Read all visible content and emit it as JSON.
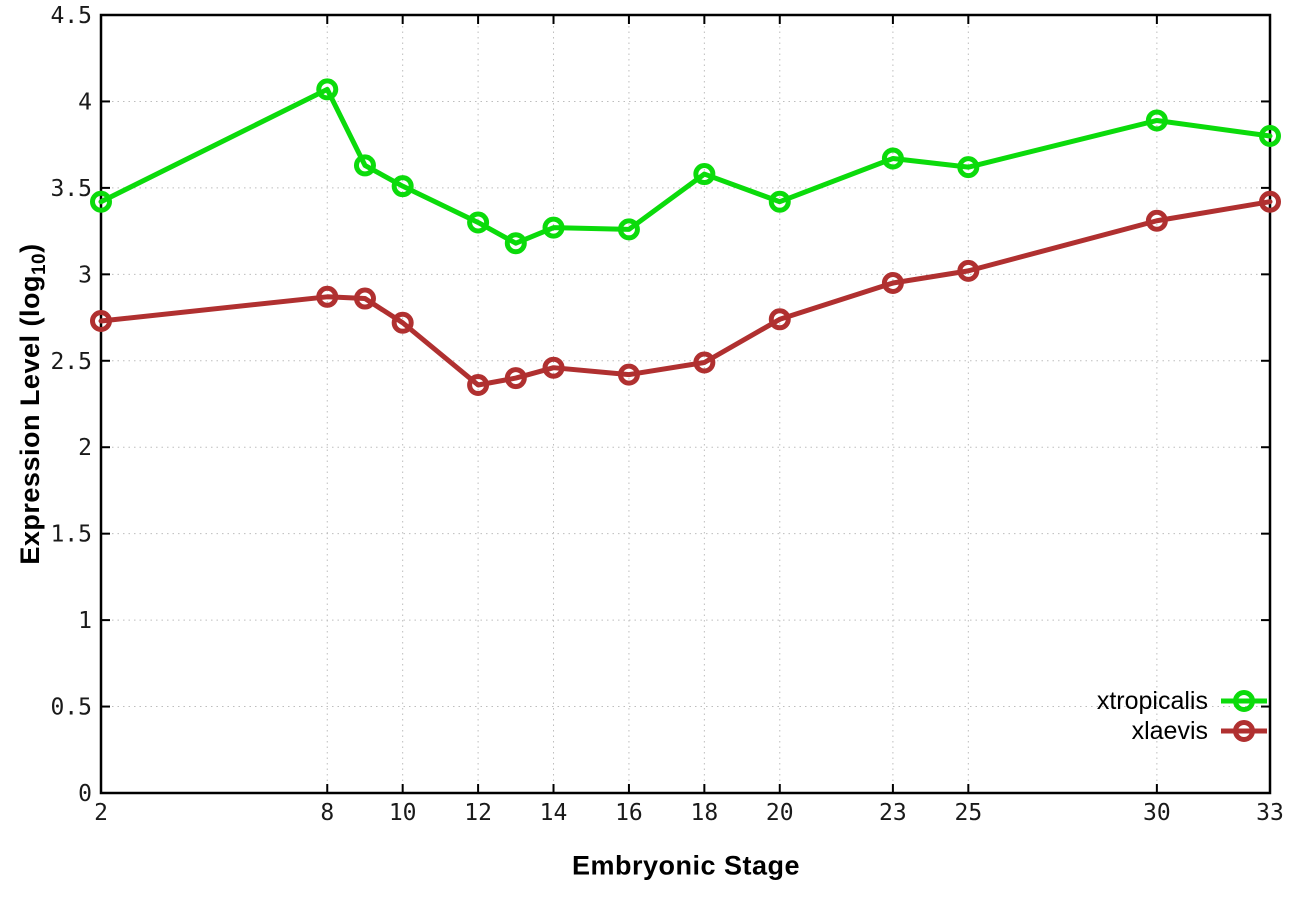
{
  "chart_data": {
    "type": "line",
    "title": "",
    "xlabel": "Embryonic Stage",
    "ylabel": "Expression Level (log10)",
    "ylabel_prefix": "Expression Level (log",
    "ylabel_subscript": "10",
    "ylabel_suffix": ")",
    "x": [
      2,
      8,
      9,
      10,
      12,
      13,
      14,
      16,
      18,
      20,
      23,
      25,
      30,
      33
    ],
    "series": [
      {
        "name": "xtropicalis",
        "color": "#0bdb0b",
        "values": [
          3.42,
          4.07,
          3.63,
          3.51,
          3.3,
          3.18,
          3.27,
          3.26,
          3.58,
          3.42,
          3.67,
          3.62,
          3.89,
          3.8
        ]
      },
      {
        "name": "xlaevis",
        "color": "#b03030",
        "values": [
          2.73,
          2.87,
          2.86,
          2.72,
          2.36,
          2.4,
          2.46,
          2.42,
          2.49,
          2.74,
          2.95,
          3.02,
          3.31,
          3.42
        ]
      }
    ],
    "xlim": [
      2,
      33
    ],
    "ylim": [
      0,
      4.5
    ],
    "xtick_values": [
      2,
      8,
      10,
      12,
      14,
      16,
      18,
      20,
      23,
      25,
      30,
      33
    ],
    "xtick_labels": [
      "2",
      "8",
      "10",
      "12",
      "14",
      "16",
      "18",
      "20",
      "23",
      "25",
      "30",
      "33"
    ],
    "ytick_values": [
      0,
      0.5,
      1,
      1.5,
      2,
      2.5,
      3,
      3.5,
      4,
      4.5
    ],
    "ytick_labels": [
      "0",
      "0.5",
      "1",
      "1.5",
      "2",
      "2.5",
      "3",
      "3.5",
      "4",
      "4.5"
    ],
    "grid": true,
    "grid_color": "#bdbdbd",
    "border_color": "#000000",
    "tick_label_color": "#1a1a1a",
    "legend_position": "bottom-right-inside",
    "marker": "open-circle",
    "line_width": 5
  }
}
